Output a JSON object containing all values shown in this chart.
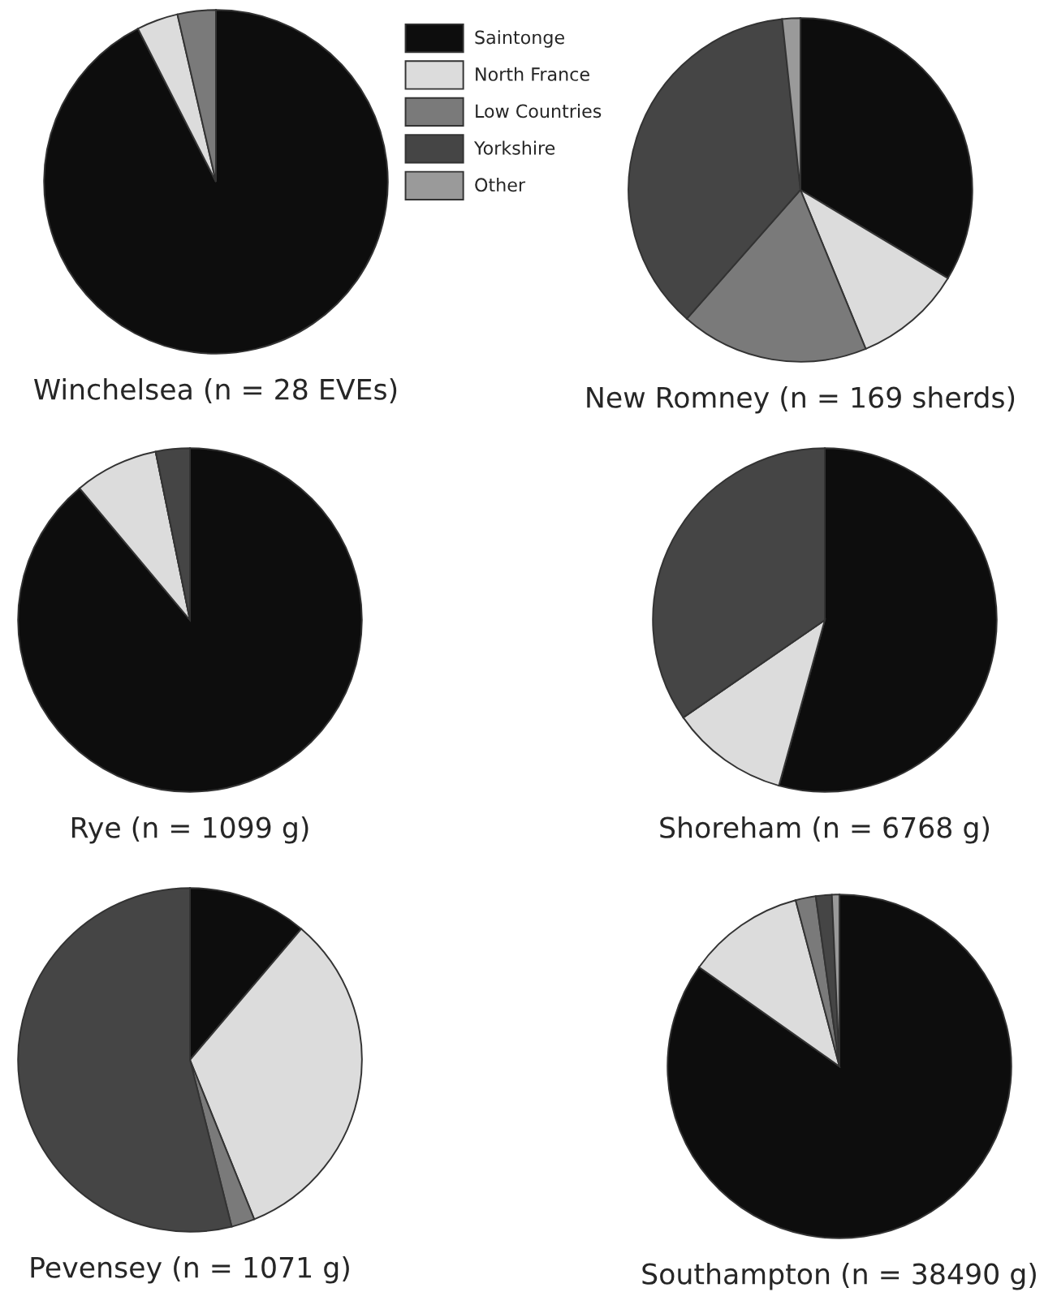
{
  "chart_data": [
    {
      "type": "pie",
      "title": "Winchelsea (n = 28 EVEs)",
      "categories": [
        "Saintonge",
        "North France",
        "Low Countries",
        "Yorkshire",
        "Other"
      ],
      "values": [
        92.5,
        3.9,
        3.6,
        0,
        0
      ],
      "colors": [
        "#0d0d0d",
        "#dcdcdc",
        "#7a7a7a",
        "#454545",
        "#9a9a9a"
      ],
      "legend": "right"
    },
    {
      "type": "pie",
      "title": "New Romney (n = 169 sherds)",
      "categories": [
        null,
        null,
        null,
        null,
        null
      ],
      "values": [
        33.6,
        10.2,
        17.7,
        36.8,
        1.7
      ],
      "colors": [
        "#0d0d0d",
        "#dcdcdc",
        "#7a7a7a",
        "#454545",
        "#9a9a9a"
      ]
    },
    {
      "type": "pie",
      "title": "Rye (n = 1099 g)",
      "categories": [
        null,
        null,
        null,
        null,
        null
      ],
      "values": [
        88.9,
        7.9,
        0,
        3.2,
        0
      ],
      "colors": [
        "#0d0d0d",
        "#dcdcdc",
        "#7a7a7a",
        "#454545",
        "#9a9a9a"
      ]
    },
    {
      "type": "pie",
      "title": "Shoreham (n = 6768 g)",
      "categories": [
        null,
        null,
        null,
        null,
        null
      ],
      "values": [
        54.3,
        11.1,
        0,
        34.6,
        0
      ],
      "colors": [
        "#0d0d0d",
        "#dcdcdc",
        "#7a7a7a",
        "#454545",
        "#9a9a9a"
      ]
    },
    {
      "type": "pie",
      "title": "Pevensey (n = 1071 g)",
      "categories": [
        null,
        null,
        null,
        null,
        null
      ],
      "values": [
        11.2,
        32.7,
        2.2,
        53.9,
        0
      ],
      "colors": [
        "#0d0d0d",
        "#dcdcdc",
        "#7a7a7a",
        "#454545",
        "#9a9a9a"
      ]
    },
    {
      "type": "pie",
      "title": "Southampton (n = 38490 g)",
      "categories": [
        null,
        null,
        null,
        null,
        null
      ],
      "values": [
        84.8,
        11.1,
        1.9,
        1.5,
        0.7
      ],
      "colors": [
        "#0d0d0d",
        "#dcdcdc",
        "#7a7a7a",
        "#454545",
        "#9a9a9a"
      ]
    }
  ]
}
